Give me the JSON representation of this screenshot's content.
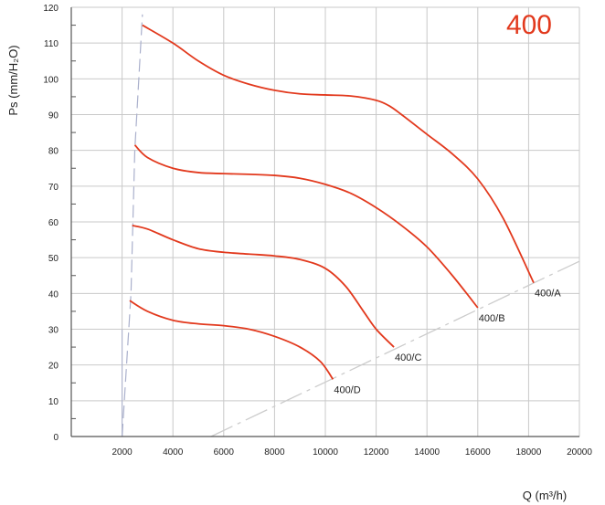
{
  "chart_data": {
    "type": "line",
    "title": "400",
    "xlabel": "Q (m³/h)",
    "ylabel": "Ps (mm/H₂O)",
    "xlim": [
      0,
      20000
    ],
    "ylim": [
      0,
      120
    ],
    "grid": true,
    "x_ticks": [
      2000,
      4000,
      6000,
      8000,
      10000,
      12000,
      14000,
      16000,
      18000,
      20000
    ],
    "x_tick_labels": [
      "2000",
      "4000",
      "6000",
      "8000",
      "10000",
      "12000",
      "14000",
      "16000",
      "18000",
      "20000"
    ],
    "y_ticks": [
      0,
      10,
      20,
      30,
      40,
      50,
      60,
      70,
      80,
      90,
      100,
      110,
      120
    ],
    "y_tick_labels": [
      "0",
      "10",
      "20",
      "30",
      "40",
      "50",
      "60",
      "70",
      "80",
      "90",
      "100",
      "110",
      "120"
    ],
    "colors": {
      "curve": "#e2391d",
      "title": "#e2391d",
      "grid": "#c9c9c9",
      "axis": "#555555",
      "dash": "#cccccc",
      "limit": "#aab0cc"
    },
    "series": [
      {
        "name": "400/A",
        "x": [
          2800,
          4000,
          5000,
          6000,
          7000,
          8000,
          9000,
          10000,
          11000,
          12000,
          12500,
          13000,
          14000,
          15000,
          16000,
          17000,
          18200
        ],
        "y": [
          115,
          110,
          105,
          101,
          98.5,
          96.8,
          95.8,
          95.5,
          95.2,
          94,
          92.5,
          90,
          84.5,
          79,
          72,
          61,
          43
        ]
      },
      {
        "name": "400/B",
        "x": [
          2500,
          3000,
          4000,
          5000,
          6000,
          7000,
          8000,
          9000,
          10000,
          11000,
          12000,
          13000,
          14000,
          15000,
          16000
        ],
        "y": [
          81.5,
          78,
          75,
          73.8,
          73.5,
          73.3,
          73,
          72.2,
          70.5,
          68,
          64,
          59,
          53,
          45,
          36
        ]
      },
      {
        "name": "400/C",
        "x": [
          2400,
          3000,
          4000,
          5000,
          6000,
          7000,
          8000,
          9000,
          10000,
          10800,
          11500,
          12000,
          12700
        ],
        "y": [
          59,
          58,
          55,
          52.5,
          51.5,
          51,
          50.5,
          49.5,
          47,
          42,
          35,
          30,
          25
        ]
      },
      {
        "name": "400/D",
        "x": [
          2300,
          3000,
          4000,
          5000,
          6000,
          7000,
          8000,
          9000,
          9800,
          10300
        ],
        "y": [
          38,
          35,
          32.5,
          31.5,
          31,
          30,
          28,
          25,
          21,
          16
        ]
      }
    ],
    "operating_limit": {
      "x": [
        2000,
        2350,
        2500,
        2800
      ],
      "y": [
        0,
        40,
        80,
        118
      ]
    },
    "system_line": {
      "x": [
        5500,
        20000
      ],
      "y": [
        0,
        49
      ]
    }
  }
}
